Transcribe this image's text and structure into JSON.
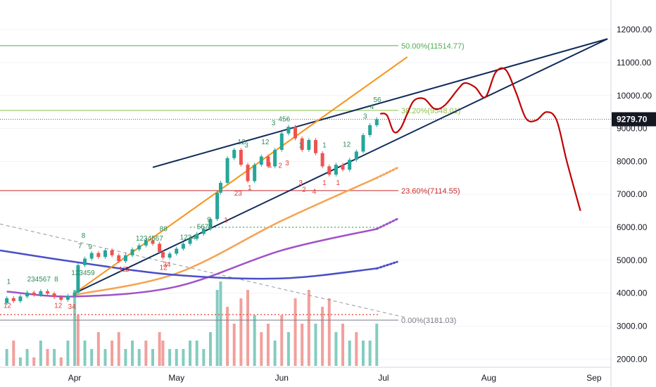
{
  "chart_data": {
    "type": "candlestick",
    "title": "",
    "price_axis": {
      "ticks": [
        2000,
        3000,
        4000,
        5000,
        6000,
        7000,
        8000,
        9000,
        10000,
        11000,
        12000
      ],
      "tick_labels": [
        "2000.00",
        "3000.00",
        "4000.00",
        "5000.00",
        "6000.00",
        "7000.00",
        "8000.00",
        "9000.00",
        "10000.00",
        "11000.00",
        "12000.00"
      ],
      "range": [
        1750,
        12900
      ]
    },
    "time_axis": {
      "labels": [
        "Apr",
        "May",
        "Jun",
        "Jul",
        "Aug",
        "Sep"
      ],
      "range": [
        "2020-03-10",
        "2020-09-06"
      ]
    },
    "last_price": {
      "value": 9279.7,
      "label": "9279.70",
      "color": "#131722"
    },
    "fibonacci_levels": [
      {
        "level": "50.00%",
        "price": 11514.77,
        "label": "50.00%(11514.77)",
        "color": "#4caf50"
      },
      {
        "level": "38.20%",
        "price": 9548.01,
        "label": "38.20%(9548.01)",
        "color": "#8bc34a"
      },
      {
        "level": "23.60%",
        "price": 7114.55,
        "label": "23.60%(7114.55)",
        "color": "#c62828"
      },
      {
        "level": "0.00%",
        "price": 3181.03,
        "label": "0.00%(3181.03)",
        "color": "#787b86"
      }
    ],
    "candles": [
      {
        "date": "2020-03-12",
        "open": 3700,
        "close": 3850
      },
      {
        "date": "2020-03-14",
        "open": 3850,
        "close": 3760
      },
      {
        "date": "2020-03-16",
        "open": 3760,
        "close": 3900
      },
      {
        "date": "2020-03-18",
        "open": 3900,
        "close": 4020
      },
      {
        "date": "2020-03-20",
        "open": 4020,
        "close": 3950
      },
      {
        "date": "2020-03-22",
        "open": 3950,
        "close": 4060
      },
      {
        "date": "2020-03-24",
        "open": 4060,
        "close": 3990
      },
      {
        "date": "2020-03-26",
        "open": 3990,
        "close": 3880
      },
      {
        "date": "2020-03-28",
        "open": 3880,
        "close": 3800
      },
      {
        "date": "2020-03-30",
        "open": 3800,
        "close": 3920
      },
      {
        "date": "2020-04-01",
        "open": 3920,
        "close": 4020
      },
      {
        "date": "2020-04-02",
        "open": 4020,
        "close": 4850
      },
      {
        "date": "2020-04-04",
        "open": 4850,
        "close": 5050
      },
      {
        "date": "2020-04-06",
        "open": 5050,
        "close": 5220
      },
      {
        "date": "2020-04-08",
        "open": 5220,
        "close": 5100
      },
      {
        "date": "2020-04-10",
        "open": 5100,
        "close": 5300
      },
      {
        "date": "2020-04-12",
        "open": 5300,
        "close": 5150
      },
      {
        "date": "2020-04-14",
        "open": 5150,
        "close": 4970
      },
      {
        "date": "2020-04-16",
        "open": 4970,
        "close": 5150
      },
      {
        "date": "2020-04-18",
        "open": 5150,
        "close": 5330
      },
      {
        "date": "2020-04-20",
        "open": 5330,
        "close": 5450
      },
      {
        "date": "2020-04-22",
        "open": 5450,
        "close": 5600
      },
      {
        "date": "2020-04-24",
        "open": 5600,
        "close": 5500
      },
      {
        "date": "2020-04-26",
        "open": 5500,
        "close": 5250
      },
      {
        "date": "2020-04-27",
        "open": 5250,
        "close": 5080
      },
      {
        "date": "2020-04-29",
        "open": 5080,
        "close": 5200
      },
      {
        "date": "2020-05-01",
        "open": 5200,
        "close": 5350
      },
      {
        "date": "2020-05-03",
        "open": 5350,
        "close": 5500
      },
      {
        "date": "2020-05-05",
        "open": 5500,
        "close": 5650
      },
      {
        "date": "2020-05-07",
        "open": 5650,
        "close": 5800
      },
      {
        "date": "2020-05-09",
        "open": 5800,
        "close": 5950
      },
      {
        "date": "2020-05-11",
        "open": 5950,
        "close": 6250
      },
      {
        "date": "2020-05-13",
        "open": 6250,
        "close": 7050
      },
      {
        "date": "2020-05-14",
        "open": 7050,
        "close": 7350
      },
      {
        "date": "2020-05-16",
        "open": 7350,
        "close": 8100
      },
      {
        "date": "2020-05-18",
        "open": 8100,
        "close": 8350
      },
      {
        "date": "2020-05-20",
        "open": 8350,
        "close": 7900
      },
      {
        "date": "2020-05-22",
        "open": 7900,
        "close": 7400
      },
      {
        "date": "2020-05-24",
        "open": 7400,
        "close": 7900
      },
      {
        "date": "2020-05-26",
        "open": 7900,
        "close": 8150
      },
      {
        "date": "2020-05-28",
        "open": 8150,
        "close": 7850
      },
      {
        "date": "2020-05-30",
        "open": 7850,
        "close": 8350
      },
      {
        "date": "2020-06-01",
        "open": 8350,
        "close": 8850
      },
      {
        "date": "2020-06-03",
        "open": 8850,
        "close": 9050
      },
      {
        "date": "2020-06-05",
        "open": 9050,
        "close": 8700
      },
      {
        "date": "2020-06-07",
        "open": 8700,
        "close": 8350
      },
      {
        "date": "2020-06-09",
        "open": 8350,
        "close": 8650
      },
      {
        "date": "2020-06-11",
        "open": 8650,
        "close": 8250
      },
      {
        "date": "2020-06-13",
        "open": 8250,
        "close": 7850
      },
      {
        "date": "2020-06-15",
        "open": 7850,
        "close": 7600
      },
      {
        "date": "2020-06-17",
        "open": 7600,
        "close": 7900
      },
      {
        "date": "2020-06-19",
        "open": 7900,
        "close": 7750
      },
      {
        "date": "2020-06-21",
        "open": 7750,
        "close": 8050
      },
      {
        "date": "2020-06-23",
        "open": 8050,
        "close": 8300
      },
      {
        "date": "2020-06-25",
        "open": 8300,
        "close": 8800
      },
      {
        "date": "2020-06-27",
        "open": 8800,
        "close": 9100
      },
      {
        "date": "2020-06-29",
        "open": 9100,
        "close": 9280
      }
    ],
    "moving_averages": [
      {
        "color": "#f6a352",
        "points": [
          [
            "2020-04-01",
            3950
          ],
          [
            "2020-05-01",
            4600
          ],
          [
            "2020-06-01",
            6200
          ],
          [
            "2020-06-29",
            7500
          ]
        ],
        "projection": [
          [
            "2020-06-29",
            7500
          ],
          [
            "2020-07-05",
            7800
          ]
        ]
      },
      {
        "color": "#a052c8",
        "points": [
          [
            "2020-03-12",
            4050
          ],
          [
            "2020-04-01",
            3900
          ],
          [
            "2020-05-01",
            4200
          ],
          [
            "2020-06-01",
            5300
          ],
          [
            "2020-06-29",
            5950
          ]
        ],
        "projection": [
          [
            "2020-06-29",
            5950
          ],
          [
            "2020-07-05",
            6250
          ]
        ]
      },
      {
        "color": "#4a4fc6",
        "points": [
          [
            "2020-03-10",
            5300
          ],
          [
            "2020-04-01",
            4950
          ],
          [
            "2020-05-01",
            4550
          ],
          [
            "2020-06-01",
            4450
          ],
          [
            "2020-06-29",
            4750
          ]
        ],
        "projection": [
          [
            "2020-06-29",
            4750
          ],
          [
            "2020-07-05",
            4950
          ]
        ]
      }
    ],
    "levels_dotted": [
      {
        "price": 6000,
        "color": "#4caf50",
        "from": "2020-05-05",
        "to": "2020-07-01"
      },
      {
        "price": 3350,
        "color": "#e53935",
        "from": "2020-03-10",
        "to": "2020-06-30"
      }
    ],
    "trend_lines": [
      {
        "color": "#0f2a5a",
        "from": [
          "2020-04-24",
          7820
        ],
        "to": [
          "2020-09-05",
          11720
        ]
      },
      {
        "color": "#0f2a5a",
        "from": [
          "2020-04-01",
          4000
        ],
        "to": [
          "2020-09-05",
          11720
        ]
      },
      {
        "color": "#f7931a",
        "from": [
          "2020-04-01",
          4000
        ],
        "to": [
          "2020-07-08",
          11170
        ]
      }
    ],
    "projection_path": {
      "color": "#c00000",
      "points": [
        [
          "2020-06-30",
          9450
        ],
        [
          "2020-07-02",
          9400
        ],
        [
          "2020-07-04",
          8900
        ],
        [
          "2020-07-06",
          9000
        ],
        [
          "2020-07-08",
          9450
        ],
        [
          "2020-07-10",
          9850
        ],
        [
          "2020-07-13",
          9900
        ],
        [
          "2020-07-16",
          9600
        ],
        [
          "2020-07-19",
          9700
        ],
        [
          "2020-07-23",
          10200
        ],
        [
          "2020-07-25",
          10380
        ],
        [
          "2020-07-28",
          10250
        ],
        [
          "2020-07-31",
          9950
        ],
        [
          "2020-08-03",
          10700
        ],
        [
          "2020-08-06",
          10780
        ],
        [
          "2020-08-09",
          10100
        ],
        [
          "2020-08-12",
          9300
        ],
        [
          "2020-08-15",
          9250
        ],
        [
          "2020-08-18",
          9500
        ],
        [
          "2020-08-21",
          9250
        ],
        [
          "2020-08-24",
          8000
        ],
        [
          "2020-08-28",
          6500
        ]
      ]
    },
    "diagonal_dashed": {
      "color": "#9598a1",
      "from": [
        "2020-03-10",
        6100
      ],
      "to": [
        "2020-07-08",
        3250
      ]
    },
    "volume": {
      "color_up": "#6fc3b4",
      "color_down": "#ee8f8b",
      "bars": [
        [
          2,
          "up"
        ],
        [
          3,
          "down"
        ],
        [
          1,
          "up"
        ],
        [
          2,
          "up"
        ],
        [
          1,
          "down"
        ],
        [
          3,
          "up"
        ],
        [
          2,
          "down"
        ],
        [
          2,
          "up"
        ],
        [
          1,
          "down"
        ],
        [
          3,
          "up"
        ],
        [
          9,
          "up"
        ],
        [
          6,
          "down"
        ],
        [
          3,
          "up"
        ],
        [
          2,
          "up"
        ],
        [
          4,
          "down"
        ],
        [
          2,
          "up"
        ],
        [
          3,
          "down"
        ],
        [
          4,
          "down"
        ],
        [
          2,
          "up"
        ],
        [
          3,
          "up"
        ],
        [
          2,
          "up"
        ],
        [
          3,
          "down"
        ],
        [
          2,
          "up"
        ],
        [
          4,
          "down"
        ],
        [
          3,
          "down"
        ],
        [
          2,
          "up"
        ],
        [
          2,
          "up"
        ],
        [
          2,
          "up"
        ],
        [
          3,
          "up"
        ],
        [
          3,
          "up"
        ],
        [
          2,
          "up"
        ],
        [
          4,
          "up"
        ],
        [
          9,
          "up"
        ],
        [
          10,
          "up"
        ],
        [
          7,
          "down"
        ],
        [
          5,
          "down"
        ],
        [
          8,
          "down"
        ],
        [
          9,
          "down"
        ],
        [
          6,
          "up"
        ],
        [
          4,
          "down"
        ],
        [
          5,
          "down"
        ],
        [
          3,
          "up"
        ],
        [
          6,
          "down"
        ],
        [
          4,
          "up"
        ],
        [
          8,
          "down"
        ],
        [
          5,
          "down"
        ],
        [
          9,
          "down"
        ],
        [
          5,
          "up"
        ],
        [
          7,
          "down"
        ],
        [
          8,
          "down"
        ],
        [
          4,
          "up"
        ],
        [
          5,
          "down"
        ],
        [
          3,
          "up"
        ],
        [
          4,
          "down"
        ],
        [
          3,
          "up"
        ],
        [
          3,
          "up"
        ],
        [
          5,
          "up"
        ]
      ]
    },
    "td_sequential_labels": [
      {
        "text": "12",
        "date": "2020-03-11",
        "price": 3550,
        "color": "#e53935"
      },
      {
        "text": "1",
        "date": "2020-03-12",
        "price": 4280,
        "color": "#2e8b57"
      },
      {
        "text": "234567",
        "date": "2020-03-18",
        "price": 4360,
        "color": "#2e8b57"
      },
      {
        "text": "8",
        "date": "2020-03-26",
        "price": 4360,
        "color": "#2e8b57"
      },
      {
        "text": "12",
        "date": "2020-03-26",
        "price": 3560,
        "color": "#e53935"
      },
      {
        "text": "34",
        "date": "2020-03-30",
        "price": 3520,
        "color": "#e53935"
      },
      {
        "text": "123459",
        "date": "2020-03-31",
        "price": 4550,
        "color": "#2e8b57"
      },
      {
        "text": "7",
        "date": "2020-04-02",
        "price": 5360,
        "color": "#2e8b57"
      },
      {
        "text": "8",
        "date": "2020-04-03",
        "price": 5680,
        "color": "#2e8b57"
      },
      {
        "text": "9",
        "date": "2020-04-05",
        "price": 5340,
        "color": "#2e8b57"
      },
      {
        "text": "12",
        "date": "2020-04-14",
        "price": 4650,
        "color": "#e53935"
      },
      {
        "text": "3",
        "date": "2020-04-16",
        "price": 4650,
        "color": "#e53935"
      },
      {
        "text": "1234567",
        "date": "2020-04-19",
        "price": 5590,
        "color": "#2e8b57"
      },
      {
        "text": "89",
        "date": "2020-04-26",
        "price": 5880,
        "color": "#2e8b57"
      },
      {
        "text": "12",
        "date": "2020-04-26",
        "price": 4710,
        "color": "#e53935"
      },
      {
        "text": "34",
        "date": "2020-04-27",
        "price": 4800,
        "color": "#e53935"
      },
      {
        "text": "1234",
        "date": "2020-05-02",
        "price": 5630,
        "color": "#2e8b57"
      },
      {
        "text": "5678",
        "date": "2020-05-07",
        "price": 5950,
        "color": "#2e8b57"
      },
      {
        "text": "9",
        "date": "2020-05-10",
        "price": 6160,
        "color": "#2e8b57"
      },
      {
        "text": "1",
        "date": "2020-05-15",
        "price": 6150,
        "color": "#e53935"
      },
      {
        "text": "23",
        "date": "2020-05-18",
        "price": 6960,
        "color": "#e53935"
      },
      {
        "text": "1",
        "date": "2020-05-22",
        "price": 7130,
        "color": "#e53935"
      },
      {
        "text": "12",
        "date": "2020-05-19",
        "price": 8520,
        "color": "#2e8b57"
      },
      {
        "text": "3",
        "date": "2020-05-21",
        "price": 8430,
        "color": "#2e8b57"
      },
      {
        "text": "12",
        "date": "2020-05-26",
        "price": 8520,
        "color": "#2e8b57"
      },
      {
        "text": "3",
        "date": "2020-05-29",
        "price": 9100,
        "color": "#2e8b57"
      },
      {
        "text": "456",
        "date": "2020-05-31",
        "price": 9220,
        "color": "#2e8b57"
      },
      {
        "text": "1",
        "date": "2020-05-28",
        "price": 7820,
        "color": "#e53935"
      },
      {
        "text": "2",
        "date": "2020-05-31",
        "price": 7810,
        "color": "#e53935"
      },
      {
        "text": "3",
        "date": "2020-06-02",
        "price": 7880,
        "color": "#e53935"
      },
      {
        "text": "1",
        "date": "2020-06-06",
        "price": 8420,
        "color": "#2e8b57"
      },
      {
        "text": "1",
        "date": "2020-06-13",
        "price": 8420,
        "color": "#2e8b57"
      },
      {
        "text": "12",
        "date": "2020-06-19",
        "price": 8450,
        "color": "#2e8b57"
      },
      {
        "text": "3",
        "date": "2020-06-25",
        "price": 9300,
        "color": "#2e8b57"
      },
      {
        "text": "4",
        "date": "2020-06-27",
        "price": 9590,
        "color": "#2e8b57"
      },
      {
        "text": "56",
        "date": "2020-06-28",
        "price": 9800,
        "color": "#2e8b57"
      },
      {
        "text": "2",
        "date": "2020-06-07",
        "price": 7080,
        "color": "#e53935"
      },
      {
        "text": "3",
        "date": "2020-06-06",
        "price": 7280,
        "color": "#e53935"
      },
      {
        "text": "4",
        "date": "2020-06-10",
        "price": 7020,
        "color": "#e53935"
      },
      {
        "text": "1",
        "date": "2020-06-13",
        "price": 7280,
        "color": "#e53935"
      },
      {
        "text": "1",
        "date": "2020-06-17",
        "price": 7280,
        "color": "#e53935"
      }
    ]
  }
}
